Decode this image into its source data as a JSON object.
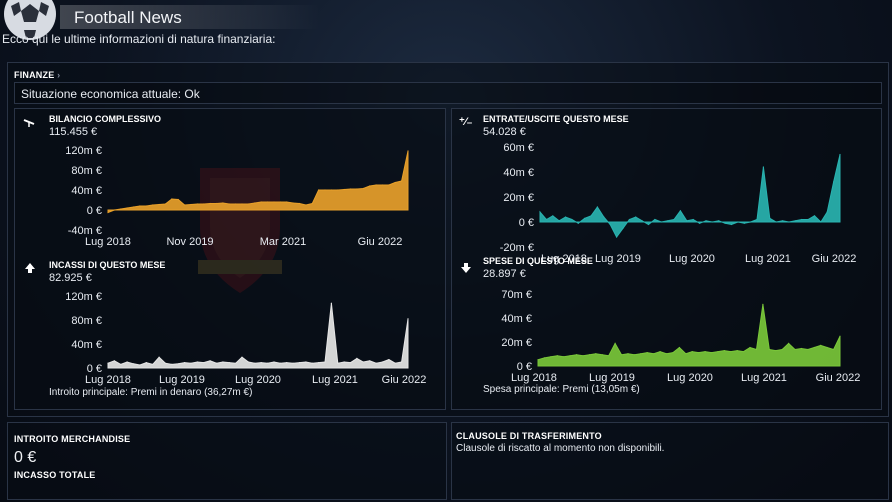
{
  "header": {
    "title": "Football News"
  },
  "intro": "Ecco qui le ultime informazioni di natura finanziaria:",
  "finanze": {
    "title": "FINANZE",
    "status": "Situazione economica attuale: Ok"
  },
  "colors": {
    "orange": "#e8a02a",
    "white": "#e6e6e6",
    "teal": "#29b3b0",
    "green": "#7ac73a"
  },
  "icons": {
    "bilancio": "balance-scale-icon",
    "entrate": "plus-minus-icon",
    "incassi": "arrow-up-icon",
    "spese": "arrow-down-icon"
  },
  "charts": {
    "bilancio": {
      "title": "BILANCIO COMPLESSIVO",
      "value": "115.455 €",
      "yticks": [
        "120m €",
        "80m €",
        "40m €",
        "0 €",
        "-40m €"
      ],
      "xticks": [
        "Lug 2018",
        "Nov 2019",
        "Mar 2021",
        "Giu 2022"
      ]
    },
    "entrate": {
      "title": "ENTRATE/USCITE QUESTO MESE",
      "value": "54.028 €",
      "yticks": [
        "60m €",
        "40m €",
        "20m €",
        "0 €",
        "-20m €"
      ],
      "xticks": [
        "Lug 2018",
        "Lug 2019",
        "Lug 2020",
        "Lug 2021",
        "Giu 2022"
      ]
    },
    "incassi": {
      "title": "INCASSI DI QUESTO MESE",
      "value": "82.925 €",
      "yticks": [
        "120m €",
        "80m €",
        "40m €",
        "0 €"
      ],
      "xticks": [
        "Lug 2018",
        "Lug 2019",
        "Lug 2020",
        "Lug 2021",
        "Giu 2022"
      ],
      "footer": "Introito principale:  Premi in denaro (36,27m €)"
    },
    "spese": {
      "title": "SPESE DI QUESTO MESE",
      "value": "28.897 €",
      "yticks": [
        "70m €",
        "40m €",
        "20m €",
        "0 €"
      ],
      "xticks": [
        "Lug 2018",
        "Lug 2019",
        "Lug 2020",
        "Lug 2021",
        "Giu 2022"
      ],
      "footer": "Spesa principale:  Premi (13,05m €)"
    }
  },
  "chart_data": [
    {
      "type": "area",
      "title": "BILANCIO COMPLESSIVO",
      "ylim": [
        -40,
        120
      ],
      "y_unit": "m €",
      "x": [
        "Lug 2018",
        "Ago 2018",
        "Set 2018",
        "Ott 2018",
        "Nov 2018",
        "Dic 2018",
        "Gen 2019",
        "Feb 2019",
        "Mar 2019",
        "Apr 2019",
        "Mag 2019",
        "Giu 2019",
        "Lug 2019",
        "Ago 2019",
        "Set 2019",
        "Ott 2019",
        "Nov 2019",
        "Dic 2019",
        "Gen 2020",
        "Feb 2020",
        "Mar 2020",
        "Apr 2020",
        "Mag 2020",
        "Giu 2020",
        "Lug 2020",
        "Ago 2020",
        "Set 2020",
        "Ott 2020",
        "Nov 2020",
        "Dic 2020",
        "Gen 2021",
        "Feb 2021",
        "Mar 2021",
        "Apr 2021",
        "Mag 2021",
        "Giu 2021",
        "Lug 2021",
        "Ago 2021",
        "Set 2021",
        "Ott 2021",
        "Nov 2021",
        "Dic 2021",
        "Gen 2022",
        "Feb 2022",
        "Mar 2022",
        "Apr 2022",
        "Mag 2022",
        "Giu 2022"
      ],
      "values": [
        -5,
        0,
        2,
        4,
        6,
        8,
        8,
        10,
        11,
        12,
        22,
        21,
        10,
        11,
        12,
        12,
        13,
        13,
        14,
        12,
        12,
        12,
        12,
        14,
        16,
        16,
        16,
        16,
        16,
        14,
        13,
        10,
        13,
        40,
        40,
        40,
        40,
        41,
        42,
        42,
        43,
        48,
        50,
        50,
        50,
        55,
        58,
        118
      ]
    },
    {
      "type": "area",
      "title": "ENTRATE/USCITE QUESTO MESE",
      "ylim": [
        -20,
        60
      ],
      "y_unit": "m €",
      "x": [
        "Lug 2018",
        "Ago 2018",
        "Set 2018",
        "Ott 2018",
        "Nov 2018",
        "Dic 2018",
        "Gen 2019",
        "Feb 2019",
        "Mar 2019",
        "Apr 2019",
        "Mag 2019",
        "Giu 2019",
        "Lug 2019",
        "Ago 2019",
        "Set 2019",
        "Ott 2019",
        "Nov 2019",
        "Dic 2019",
        "Gen 2020",
        "Feb 2020",
        "Mar 2020",
        "Apr 2020",
        "Mag 2020",
        "Giu 2020",
        "Lug 2020",
        "Ago 2020",
        "Set 2020",
        "Ott 2020",
        "Nov 2020",
        "Dic 2020",
        "Gen 2021",
        "Feb 2021",
        "Mar 2021",
        "Apr 2021",
        "Mag 2021",
        "Giu 2021",
        "Lug 2021",
        "Ago 2021",
        "Set 2021",
        "Ott 2021",
        "Nov 2021",
        "Dic 2021",
        "Gen 2022",
        "Feb 2022",
        "Mar 2022",
        "Apr 2022",
        "Mag 2022",
        "Giu 2022"
      ],
      "values": [
        8,
        2,
        5,
        1,
        4,
        2,
        -1,
        3,
        5,
        12,
        4,
        -2,
        -12,
        -5,
        2,
        4,
        1,
        -2,
        2,
        0,
        1,
        2,
        9,
        1,
        2,
        -1,
        1,
        0,
        1,
        -1,
        -2,
        0,
        -1,
        0,
        2,
        44,
        3,
        0,
        1,
        0,
        1,
        2,
        2,
        5,
        0,
        8,
        32,
        54
      ]
    },
    {
      "type": "area",
      "title": "INCASSI DI QUESTO MESE",
      "ylim": [
        0,
        120
      ],
      "y_unit": "m €",
      "x": [
        "Lug 2018",
        "Ago 2018",
        "Set 2018",
        "Ott 2018",
        "Nov 2018",
        "Dic 2018",
        "Gen 2019",
        "Feb 2019",
        "Mar 2019",
        "Apr 2019",
        "Mag 2019",
        "Giu 2019",
        "Lug 2019",
        "Ago 2019",
        "Set 2019",
        "Ott 2019",
        "Nov 2019",
        "Dic 2019",
        "Gen 2020",
        "Feb 2020",
        "Mar 2020",
        "Apr 2020",
        "Mag 2020",
        "Giu 2020",
        "Lug 2020",
        "Ago 2020",
        "Set 2020",
        "Ott 2020",
        "Nov 2020",
        "Dic 2020",
        "Gen 2021",
        "Feb 2021",
        "Mar 2021",
        "Apr 2021",
        "Mag 2021",
        "Giu 2021",
        "Lug 2021",
        "Ago 2021",
        "Set 2021",
        "Ott 2021",
        "Nov 2021",
        "Dic 2021",
        "Gen 2022",
        "Feb 2022",
        "Mar 2022",
        "Apr 2022",
        "Mag 2022",
        "Giu 2022"
      ],
      "values": [
        8,
        12,
        6,
        10,
        7,
        5,
        9,
        6,
        18,
        8,
        6,
        7,
        9,
        8,
        10,
        9,
        12,
        8,
        10,
        9,
        8,
        18,
        10,
        8,
        9,
        8,
        10,
        8,
        9,
        8,
        9,
        10,
        8,
        9,
        10,
        108,
        8,
        10,
        9,
        16,
        10,
        12,
        8,
        10,
        14,
        8,
        10,
        82
      ]
    },
    {
      "type": "area",
      "title": "SPESE DI QUESTO MESE",
      "ylim": [
        0,
        70
      ],
      "y_unit": "m €",
      "x": [
        "Lug 2018",
        "Ago 2018",
        "Set 2018",
        "Ott 2018",
        "Nov 2018",
        "Dic 2018",
        "Gen 2019",
        "Feb 2019",
        "Mar 2019",
        "Apr 2019",
        "Mag 2019",
        "Giu 2019",
        "Lug 2019",
        "Ago 2019",
        "Set 2019",
        "Ott 2019",
        "Nov 2019",
        "Dic 2019",
        "Gen 2020",
        "Feb 2020",
        "Mar 2020",
        "Apr 2020",
        "Mag 2020",
        "Giu 2020",
        "Lug 2020",
        "Ago 2020",
        "Set 2020",
        "Ott 2020",
        "Nov 2020",
        "Dic 2020",
        "Gen 2021",
        "Feb 2021",
        "Mar 2021",
        "Apr 2021",
        "Mag 2021",
        "Giu 2021",
        "Lug 2021",
        "Ago 2021",
        "Set 2021",
        "Ott 2021",
        "Nov 2021",
        "Dic 2021",
        "Gen 2022",
        "Feb 2022",
        "Mar 2022",
        "Apr 2022",
        "Mag 2022",
        "Giu 2022"
      ],
      "values": [
        6,
        8,
        9,
        10,
        9,
        10,
        11,
        10,
        11,
        12,
        11,
        10,
        22,
        11,
        12,
        11,
        12,
        13,
        12,
        14,
        12,
        13,
        18,
        12,
        14,
        13,
        14,
        13,
        14,
        15,
        14,
        15,
        14,
        18,
        16,
        60,
        16,
        15,
        16,
        22,
        16,
        17,
        16,
        18,
        20,
        18,
        16,
        29
      ]
    }
  ],
  "merchandise": {
    "title": "INTROITO MERCHANDISE",
    "value": "0 €",
    "total_title": "INCASSO TOTALE"
  },
  "clausole": {
    "title": "CLAUSOLE DI TRASFERIMENTO",
    "text": "Clausole di riscatto al momento non disponibili."
  }
}
